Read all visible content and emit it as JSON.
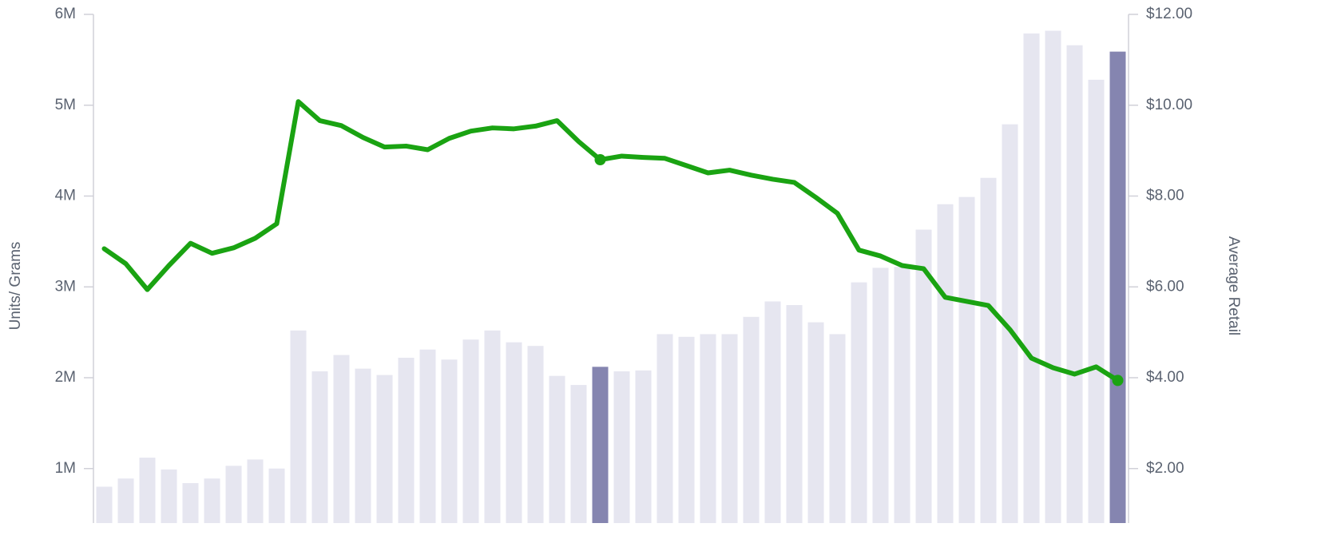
{
  "chart_data": {
    "type": "bar-line",
    "ylabel": "Units/ Grams",
    "y2label": "Average Retail",
    "ylim": [
      400000,
      6000000
    ],
    "yticks": [
      {
        "value": 1000000,
        "label": "1M"
      },
      {
        "value": 2000000,
        "label": "2M"
      },
      {
        "value": 3000000,
        "label": "3M"
      },
      {
        "value": 4000000,
        "label": "4M"
      },
      {
        "value": 5000000,
        "label": "5M"
      },
      {
        "value": 6000000,
        "label": "6M"
      }
    ],
    "y2lim": [
      0.8,
      12
    ],
    "y2ticks": [
      {
        "value": 2,
        "label": "$2.00"
      },
      {
        "value": 4,
        "label": "$4.00"
      },
      {
        "value": 6,
        "label": "$6.00"
      },
      {
        "value": 8,
        "label": "$8.00"
      },
      {
        "value": 10,
        "label": "$10.00"
      },
      {
        "value": 12,
        "label": "$12.00"
      }
    ],
    "series": [
      {
        "type": "bar",
        "color": "#e6e6f0",
        "highlight_color": "#8585b0",
        "highlight": [
          23,
          47
        ],
        "values": [
          800000,
          890000,
          1120000,
          990000,
          840000,
          890000,
          1030000,
          1100000,
          1000000,
          2520000,
          2070000,
          2250000,
          2100000,
          2030000,
          2220000,
          2310000,
          2200000,
          2420000,
          2520000,
          2390000,
          2350000,
          2020000,
          1920000,
          2120000,
          2070000,
          2080000,
          2480000,
          2450000,
          2480000,
          2480000,
          2670000,
          2840000,
          2800000,
          2610000,
          2480000,
          3050000,
          3210000,
          3220000,
          3630000,
          3910000,
          3990000,
          4200000,
          4790000,
          5790000,
          5820000,
          5660000,
          5280000,
          5590000
        ]
      },
      {
        "type": "line",
        "axis": "y2",
        "color": "#1aa312",
        "markers": [
          23,
          47
        ],
        "values": [
          6.84,
          6.51,
          5.94,
          6.47,
          6.96,
          6.74,
          6.86,
          7.07,
          7.39,
          10.08,
          9.66,
          9.55,
          9.29,
          9.08,
          9.1,
          9.02,
          9.27,
          9.43,
          9.5,
          9.48,
          9.54,
          9.66,
          9.2,
          8.8,
          8.88,
          8.85,
          8.83,
          8.67,
          8.51,
          8.57,
          8.46,
          8.37,
          8.3,
          7.97,
          7.62,
          6.81,
          6.68,
          6.47,
          6.4,
          5.77,
          5.68,
          5.59,
          5.06,
          4.43,
          4.22,
          4.08,
          4.24,
          3.94
        ]
      }
    ]
  }
}
